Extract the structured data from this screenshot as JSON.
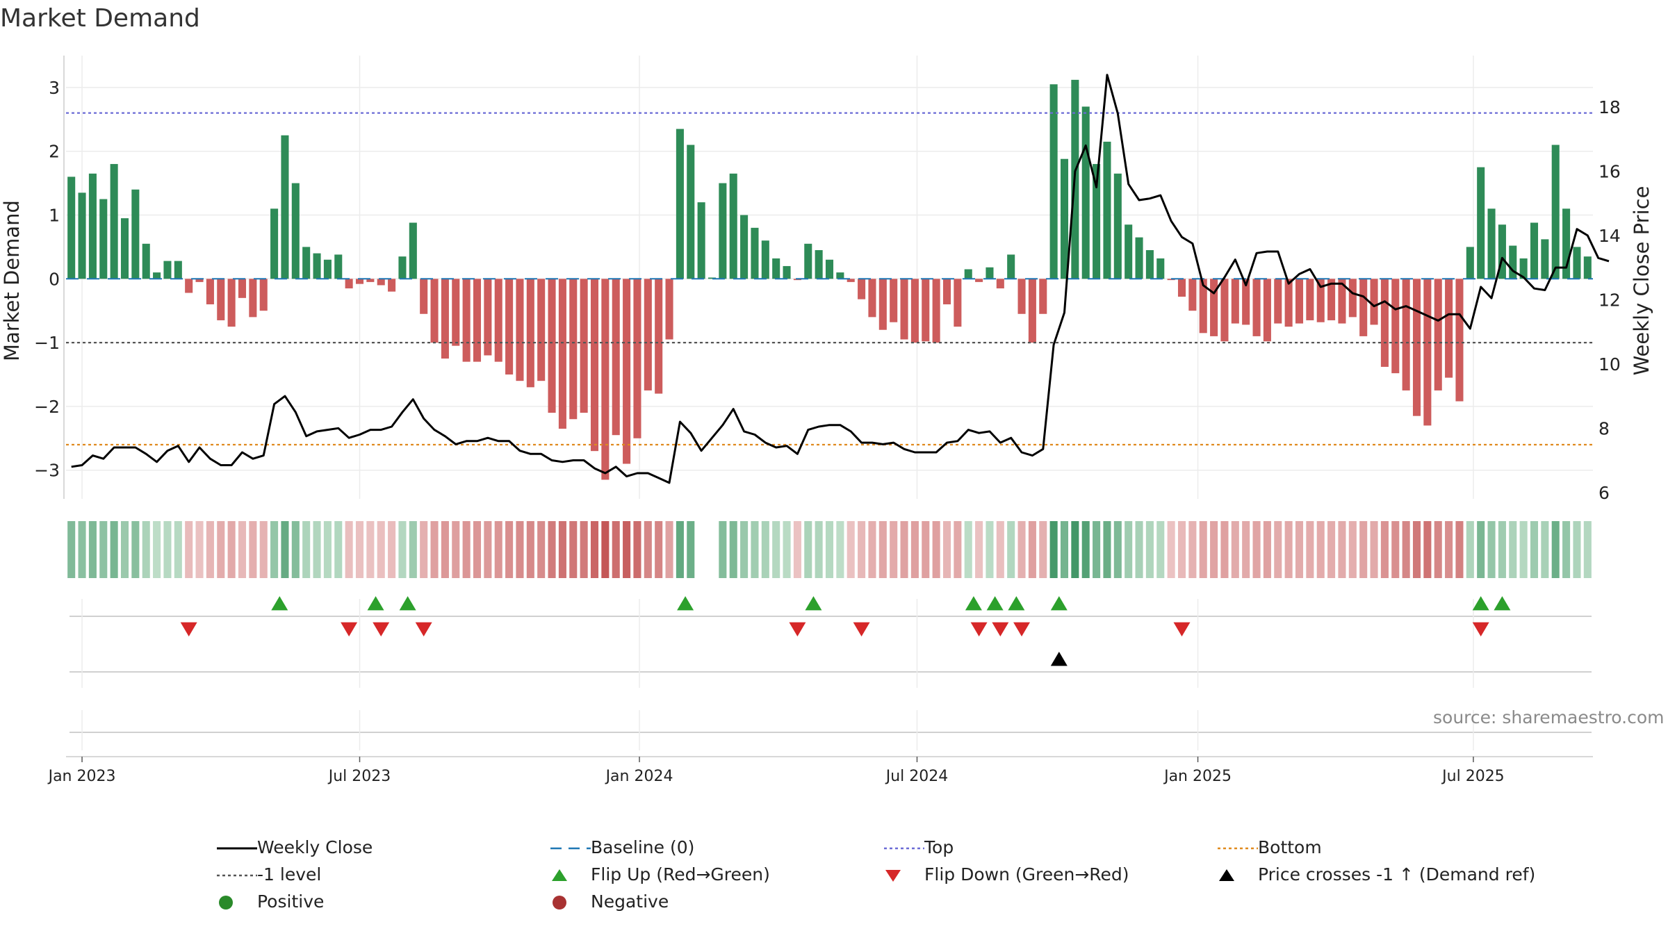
{
  "chart_data": {
    "type": "bar",
    "title": "Market Demand",
    "ylabel": "Market Demand",
    "y2label": "Weekly Close Price",
    "ylim": [
      -3.45,
      3.5
    ],
    "y2lim": [
      5.8,
      19.6
    ],
    "yticks": [
      3,
      2,
      1,
      0,
      -1,
      -2,
      -3
    ],
    "y2ticks": [
      6,
      8,
      10,
      12,
      14,
      16,
      18
    ],
    "reference_lines": {
      "top": 2.6,
      "bottom": -2.6,
      "minus_one": -1,
      "baseline": 0
    },
    "xticks": [
      {
        "label": "Jan 2023",
        "week": 1.5
      },
      {
        "label": "Jul 2023",
        "week": 27.5
      },
      {
        "label": "Jan 2024",
        "week": 53.7
      },
      {
        "label": "Jul 2024",
        "week": 79.7
      },
      {
        "label": "Jan 2025",
        "week": 106
      },
      {
        "label": "Jul 2025",
        "week": 131.8
      }
    ],
    "demand": [
      1.6,
      1.35,
      1.65,
      1.25,
      1.8,
      0.95,
      1.4,
      0.55,
      0.1,
      0.28,
      0.28,
      -0.22,
      -0.05,
      -0.4,
      -0.65,
      -0.75,
      -0.3,
      -0.6,
      -0.5,
      1.1,
      2.25,
      1.5,
      0.5,
      0.4,
      0.3,
      0.38,
      -0.15,
      -0.08,
      -0.05,
      -0.1,
      -0.2,
      0.35,
      0.88,
      -0.55,
      -1.0,
      -1.25,
      -1.05,
      -1.3,
      -1.3,
      -1.2,
      -1.3,
      -1.5,
      -1.6,
      -1.7,
      -1.6,
      -2.1,
      -2.35,
      -2.2,
      -2.1,
      -2.7,
      -3.15,
      -2.45,
      -2.9,
      -2.5,
      -1.75,
      -1.8,
      -0.95,
      2.35,
      2.1,
      1.2,
      0.02,
      1.5,
      1.65,
      1.0,
      0.8,
      0.6,
      0.32,
      0.2,
      -0.02,
      0.55,
      0.45,
      0.3,
      0.1,
      -0.05,
      -0.32,
      -0.6,
      -0.8,
      -0.68,
      -0.95,
      -1.0,
      -0.98,
      -1.0,
      -0.4,
      -0.75,
      0.15,
      -0.05,
      0.18,
      -0.15,
      0.38,
      -0.55,
      -1.0,
      -0.55,
      3.05,
      1.88,
      3.12,
      2.7,
      1.8,
      2.15,
      1.65,
      0.85,
      0.65,
      0.45,
      0.32,
      -0.02,
      -0.28,
      -0.5,
      -0.85,
      -0.9,
      -0.98,
      -0.7,
      -0.72,
      -0.9,
      -0.98,
      -0.7,
      -0.75,
      -0.7,
      -0.65,
      -0.68,
      -0.65,
      -0.7,
      -0.6,
      -0.9,
      -0.72,
      -1.38,
      -1.48,
      -1.75,
      -2.15,
      -2.3,
      -1.75,
      -1.55,
      -1.92,
      0.5,
      1.75,
      1.1,
      0.85,
      0.52,
      0.32,
      0.88,
      0.62,
      2.1,
      1.1,
      0.5,
      0.35
    ],
    "price": [
      6.8,
      6.85,
      7.15,
      7.05,
      7.4,
      7.4,
      7.4,
      7.2,
      6.95,
      7.3,
      7.45,
      6.95,
      7.4,
      7.05,
      6.85,
      6.85,
      7.25,
      7.05,
      7.15,
      8.75,
      9.0,
      8.5,
      7.75,
      7.9,
      7.95,
      8.0,
      7.7,
      7.8,
      7.95,
      7.95,
      8.05,
      8.5,
      8.9,
      8.3,
      7.95,
      7.75,
      7.5,
      7.6,
      7.6,
      7.7,
      7.6,
      7.6,
      7.3,
      7.2,
      7.2,
      7.0,
      6.95,
      7.0,
      7.0,
      6.75,
      6.6,
      6.8,
      6.5,
      6.6,
      6.6,
      6.45,
      6.3,
      8.2,
      7.85,
      7.3,
      7.7,
      8.1,
      8.6,
      7.9,
      7.8,
      7.55,
      7.4,
      7.45,
      7.2,
      7.95,
      8.05,
      8.1,
      8.1,
      7.9,
      7.55,
      7.55,
      7.5,
      7.55,
      7.35,
      7.25,
      7.25,
      7.25,
      7.55,
      7.6,
      7.95,
      7.85,
      7.9,
      7.55,
      7.7,
      7.25,
      7.15,
      7.35,
      10.6,
      11.6,
      16.0,
      16.8,
      15.5,
      19.0,
      17.8,
      15.6,
      15.1,
      15.15,
      15.25,
      14.45,
      13.95,
      13.75,
      12.45,
      12.2,
      12.7,
      13.25,
      12.45,
      13.45,
      13.5,
      13.5,
      12.5,
      12.8,
      12.95,
      12.4,
      12.5,
      12.5,
      12.2,
      12.1,
      11.8,
      11.95,
      11.7,
      11.8,
      11.65,
      11.5,
      11.35,
      11.55,
      11.55,
      11.1,
      12.4,
      12.05,
      13.3,
      12.9,
      12.7,
      12.35,
      12.3,
      13.0,
      13.0,
      14.2,
      14.0,
      13.3,
      13.2
    ],
    "flip_up": [
      19.5,
      28.5,
      31.5,
      57.5,
      69.5,
      84.5,
      86.5,
      88.5,
      92.5,
      132,
      134
    ],
    "flip_down": [
      11,
      26,
      29,
      33,
      68,
      74,
      85,
      87,
      89,
      104,
      132
    ],
    "price_cross_up": [
      92.5
    ],
    "heat_gaps": [
      59.7
    ],
    "legend": [
      {
        "label": "Weekly Close",
        "type": "line",
        "color": "#000000"
      },
      {
        "label": "Baseline (0)",
        "type": "dash",
        "color": "#1f77b4"
      },
      {
        "label": "Top",
        "type": "dot",
        "color": "#6b6bd6"
      },
      {
        "label": "Bottom",
        "type": "dot",
        "color": "#e08a1e"
      },
      {
        "label": "-1 level",
        "type": "dot",
        "color": "#555555"
      },
      {
        "label": "Flip Up (Red→Green)",
        "type": "tri-up",
        "color": "#2ca02c"
      },
      {
        "label": "Flip Down (Green→Red)",
        "type": "tri-down",
        "color": "#d62728"
      },
      {
        "label": "Price crosses -1 ↑ (Demand ref)",
        "type": "tri-up",
        "color": "#000000"
      },
      {
        "label": "Positive",
        "type": "circle",
        "color": "#2a8a2a"
      },
      {
        "label": "Negative",
        "type": "circle",
        "color": "#a83232"
      }
    ],
    "colors": {
      "positive": "#2e8b57",
      "negative": "#cd5c5c",
      "price": "#000000"
    }
  },
  "source": "source: sharemaestro.com"
}
